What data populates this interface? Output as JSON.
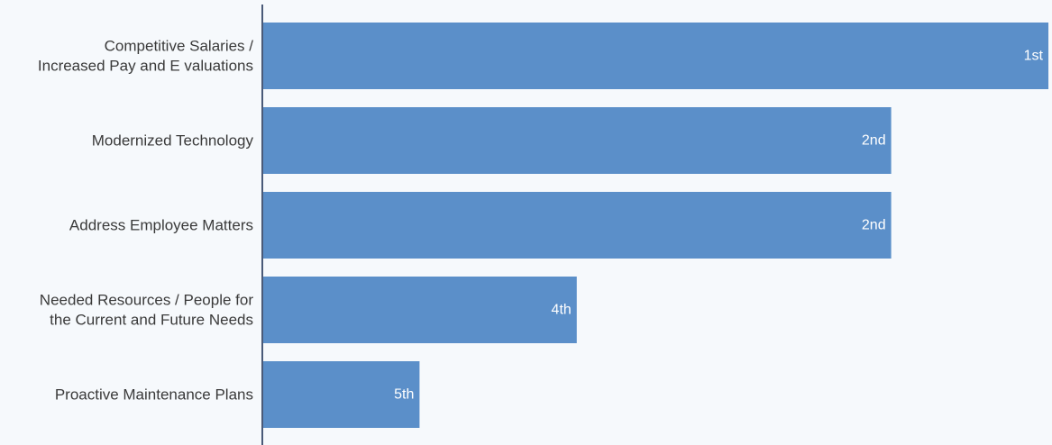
{
  "chart_data": {
    "type": "bar",
    "orientation": "horizontal",
    "categories": [
      [
        "Competitive Salaries /",
        "Increased Pay and E valuations"
      ],
      [
        "Modernized Technology"
      ],
      [
        "Address Employee Matters"
      ],
      [
        "Needed Resources / People for",
        "the Current and Future Needs"
      ],
      [
        "Proactive Maintenance Plans"
      ]
    ],
    "values": [
      100,
      80,
      80,
      40,
      20
    ],
    "data_labels": [
      "1st",
      "2nd",
      "2nd",
      "4th",
      "5th"
    ],
    "xlim": [
      0,
      100
    ],
    "grid": false,
    "legend": "none",
    "colors": {
      "bar": "#5b8fc9",
      "axis": "#4a5a78",
      "background": "#f6f9fc",
      "label_text": "#3a3a3a",
      "bar_text": "#ffffff"
    }
  }
}
